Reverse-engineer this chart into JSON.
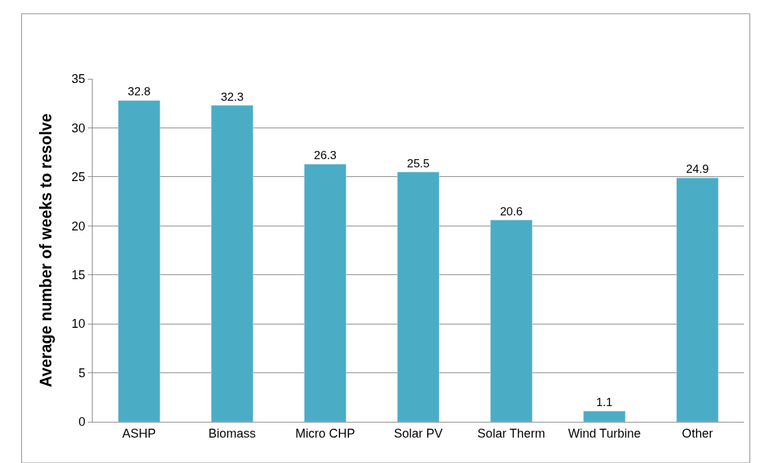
{
  "chart_data": {
    "type": "bar",
    "ylabel": "Average number of weeks to resolve",
    "categories": [
      "ASHP",
      "Biomass",
      "Micro CHP",
      "Solar PV",
      "Solar Therm",
      "Wind Turbine",
      "Other"
    ],
    "values": [
      32.8,
      32.3,
      26.3,
      25.5,
      20.6,
      1.1,
      24.9
    ],
    "color": "#4bacc6",
    "ylim": [
      0,
      35
    ],
    "yticks": [
      0,
      5,
      10,
      15,
      20,
      25,
      30,
      35
    ],
    "grid": "y",
    "data_labels": true,
    "legend": false
  }
}
